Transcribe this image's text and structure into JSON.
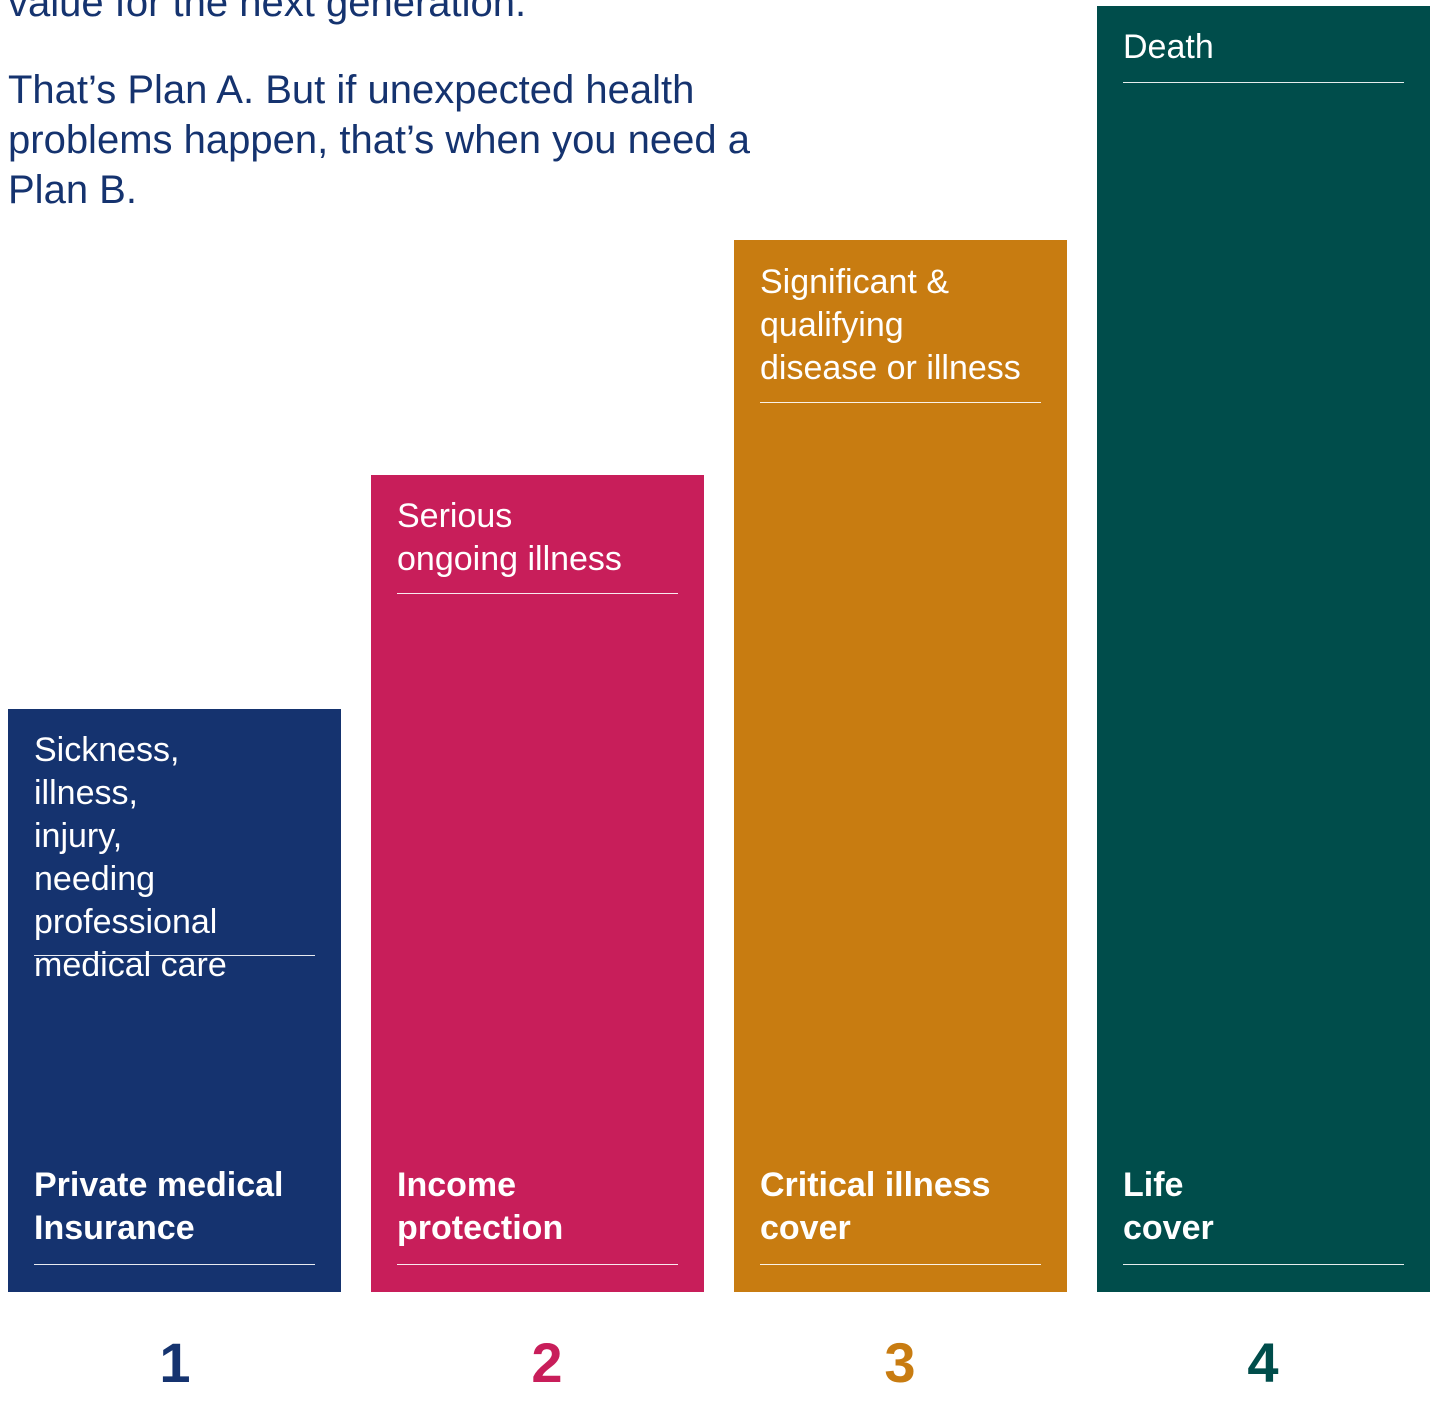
{
  "intro": {
    "line1": "value for the next generation.",
    "line2": "That’s Plan A. But if unexpected health problems happen, that’s when you need a Plan B."
  },
  "colors": {
    "navy": "#15336f",
    "magenta": "#c81e5a",
    "amber": "#c87c11",
    "teal": "#004d4b"
  },
  "columns": [
    {
      "number": "1",
      "description": "Sickness, illness, injury, needing professional medical care",
      "name_line1": "Private medical",
      "name_line2": "Insurance",
      "color": "#15336f"
    },
    {
      "number": "2",
      "description": "Serious ongoing illness",
      "name_line1": "Income",
      "name_line2": "protection",
      "color": "#c81e5a"
    },
    {
      "number": "3",
      "description": "Significant & qualifying disease or illness",
      "name_line1": "Critical illness",
      "name_line2": "cover",
      "color": "#c87c11"
    },
    {
      "number": "4",
      "description": "Death",
      "name_line1": "Life",
      "name_line2": "cover",
      "color": "#004d4b"
    }
  ]
}
